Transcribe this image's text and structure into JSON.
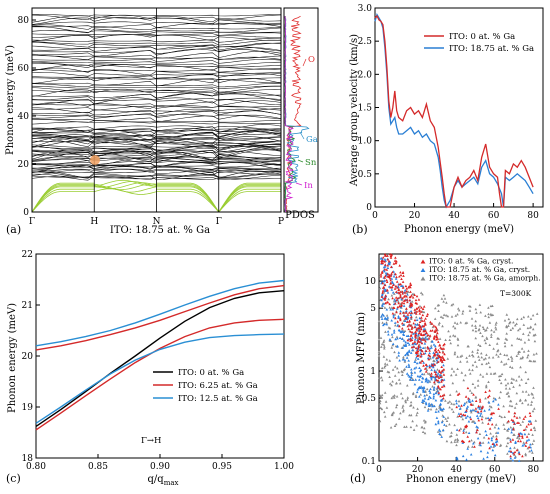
{
  "chart_data": [
    {
      "id": "a",
      "type": "line",
      "panel_label": "(a)",
      "caption": "ITO: 18.75 at. % Ga",
      "ylabel": "Phonon energy (meV)",
      "xticks": [
        "Γ",
        "H",
        "N",
        "Γ",
        "P"
      ],
      "xtick_pos": [
        0,
        1,
        2,
        3,
        4
      ],
      "yticks": [
        0,
        20,
        40,
        60,
        80
      ],
      "ylim": [
        0,
        85
      ],
      "bands": {
        "low_branches_color": "#9acd32",
        "high_branches_color": "#000000",
        "gap_bottom": 35,
        "gap_top": 37,
        "upper_band_range": [
          37,
          82
        ],
        "lower_band_range": [
          10,
          35
        ]
      },
      "pdos": {
        "label": "PDOS",
        "series": [
          {
            "name": "O",
            "color": "#e03030"
          },
          {
            "name": "Ga",
            "color": "#2a8fc8"
          },
          {
            "name": "Sn",
            "color": "#2e8b2e"
          },
          {
            "name": "In",
            "color": "#d020d0"
          }
        ]
      }
    },
    {
      "id": "b",
      "type": "line",
      "panel_label": "(b)",
      "xlabel": "Phonon energy (meV)",
      "ylabel": "Average group velocity (km/s)",
      "xlim": [
        0,
        85
      ],
      "ylim": [
        0,
        3.0
      ],
      "xticks": [
        0,
        20,
        40,
        60,
        80
      ],
      "yticks": [
        0,
        0.5,
        1.0,
        1.5,
        2.0,
        2.5,
        3.0
      ],
      "ytick_labels": [
        "0",
        "0.5",
        "1.0",
        "1.5",
        "2.0",
        "2.5",
        "3.0"
      ],
      "legend": "top-right",
      "series": [
        {
          "name": "ITO: 0 at. % Ga",
          "color": "#d42a2a",
          "x": [
            0,
            1,
            2,
            3,
            4,
            5,
            6,
            7,
            8,
            9,
            10,
            11,
            12,
            14,
            16,
            18,
            20,
            22,
            24,
            26,
            28,
            30,
            32,
            34,
            35,
            36,
            37,
            38,
            40,
            42,
            44,
            46,
            48,
            50,
            52,
            54,
            56,
            58,
            60,
            62,
            63,
            64,
            65,
            66,
            68,
            70,
            72,
            74,
            76,
            78,
            80
          ],
          "y": [
            2.85,
            2.88,
            2.82,
            2.8,
            2.75,
            2.5,
            2.1,
            1.6,
            1.35,
            1.5,
            1.75,
            1.45,
            1.35,
            1.3,
            1.45,
            1.5,
            1.4,
            1.45,
            1.35,
            1.55,
            1.3,
            1.2,
            0.9,
            0.45,
            0.2,
            0.0,
            0.0,
            0.0,
            0.3,
            0.45,
            0.3,
            0.4,
            0.45,
            0.55,
            0.4,
            0.75,
            0.95,
            0.6,
            0.5,
            0.45,
            0.2,
            0.0,
            0.0,
            0.55,
            0.5,
            0.65,
            0.6,
            0.7,
            0.6,
            0.45,
            0.3
          ]
        },
        {
          "name": "ITO: 18.75 at. % Ga",
          "color": "#2a7fd4",
          "x": [
            0,
            1,
            2,
            3,
            4,
            5,
            6,
            7,
            8,
            9,
            10,
            11,
            12,
            14,
            16,
            18,
            20,
            22,
            24,
            26,
            28,
            30,
            32,
            33,
            34,
            35,
            36,
            38,
            40,
            42,
            44,
            46,
            48,
            50,
            52,
            54,
            56,
            58,
            60,
            62,
            64,
            65,
            66,
            68,
            70,
            72,
            74,
            76,
            78,
            80
          ],
          "y": [
            2.8,
            2.9,
            2.85,
            2.8,
            2.7,
            2.4,
            2.0,
            1.5,
            1.25,
            1.3,
            1.35,
            1.2,
            1.1,
            1.1,
            1.15,
            1.2,
            1.1,
            1.15,
            1.05,
            1.1,
            1.0,
            0.95,
            0.75,
            0.55,
            0.3,
            0.1,
            0.0,
            0.1,
            0.3,
            0.4,
            0.3,
            0.35,
            0.4,
            0.45,
            0.35,
            0.6,
            0.7,
            0.5,
            0.45,
            0.35,
            0.2,
            0.0,
            0.45,
            0.4,
            0.45,
            0.5,
            0.45,
            0.4,
            0.3,
            0.2
          ]
        }
      ]
    },
    {
      "id": "c",
      "type": "line",
      "panel_label": "(c)",
      "xlabel": "q/q",
      "xlabel_sub": "max",
      "ylabel": "Phonon energy (meV)",
      "annotation": "Γ→H",
      "xlim": [
        0.8,
        1.0
      ],
      "ylim": [
        18,
        22
      ],
      "xticks": [
        0.8,
        0.85,
        0.9,
        0.95,
        1.0
      ],
      "xtick_labels": [
        "0.80",
        "0.85",
        "0.90",
        "0.95",
        "1.00"
      ],
      "yticks": [
        18,
        19,
        20,
        21,
        22
      ],
      "legend": "center-right",
      "series": [
        {
          "name": "ITO: 0 at. % Ga",
          "color": "#000000",
          "x": [
            0.8,
            0.82,
            0.84,
            0.86,
            0.88,
            0.9,
            0.92,
            0.94,
            0.96,
            0.98,
            1.0
          ],
          "y": [
            18.62,
            18.95,
            19.3,
            19.66,
            20.0,
            20.35,
            20.68,
            20.95,
            21.13,
            21.24,
            21.28
          ]
        },
        {
          "name": "ITO: 6.25 at. % Ga",
          "color": "#d42a2a",
          "x": [
            0.8,
            0.82,
            0.84,
            0.86,
            0.88,
            0.9,
            0.92,
            0.94,
            0.96,
            0.98,
            1.0
          ],
          "y": [
            18.55,
            18.88,
            19.22,
            19.55,
            19.87,
            20.15,
            20.38,
            20.55,
            20.65,
            20.7,
            20.72
          ]
        },
        {
          "name": "ITO: 6.25 at. % Ga",
          "color": "#d42a2a",
          "x": [
            0.8,
            0.82,
            0.84,
            0.86,
            0.88,
            0.9,
            0.92,
            0.94,
            0.96,
            0.98,
            1.0
          ],
          "y": [
            20.12,
            20.2,
            20.3,
            20.42,
            20.55,
            20.7,
            20.87,
            21.04,
            21.2,
            21.32,
            21.38
          ]
        },
        {
          "name": "ITO: 12.5 at. % Ga",
          "color": "#2a8fd4",
          "x": [
            0.8,
            0.82,
            0.84,
            0.86,
            0.88,
            0.9,
            0.92,
            0.94,
            0.96,
            0.98,
            1.0
          ],
          "y": [
            18.68,
            19.0,
            19.33,
            19.65,
            19.92,
            20.13,
            20.27,
            20.36,
            20.4,
            20.42,
            20.43
          ]
        },
        {
          "name": "ITO: 12.5 at. % Ga",
          "color": "#2a8fd4",
          "x": [
            0.8,
            0.82,
            0.84,
            0.86,
            0.88,
            0.9,
            0.92,
            0.94,
            0.96,
            0.98,
            1.0
          ],
          "y": [
            20.2,
            20.28,
            20.38,
            20.5,
            20.65,
            20.82,
            21.0,
            21.17,
            21.32,
            21.43,
            21.48
          ]
        }
      ],
      "legend_entries": [
        {
          "name": "ITO: 0 at. % Ga",
          "color": "#000000"
        },
        {
          "name": "ITO: 6.25 at. % Ga",
          "color": "#d42a2a"
        },
        {
          "name": "ITO: 12.5 at. % Ga",
          "color": "#2a8fd4"
        }
      ]
    },
    {
      "id": "d",
      "type": "scatter",
      "panel_label": "(d)",
      "xlabel": "Phonon energy (meV)",
      "ylabel": "Phonon MFP (nm)",
      "annotation": "T=300K",
      "yscale": "log",
      "xlim": [
        0,
        85
      ],
      "ylim": [
        0.1,
        20
      ],
      "xticks": [
        0,
        20,
        40,
        60,
        80
      ],
      "yticks": [
        0.1,
        0.5,
        1,
        5,
        10
      ],
      "ytick_labels": [
        "0.1",
        "0.5",
        "1",
        "5",
        "10"
      ],
      "legend": "top-right",
      "series": [
        {
          "name": "ITO: 0 at. % Ga, cryst.",
          "color": "#dd2222",
          "marker": "triangle"
        },
        {
          "name": "ITO: 18.75 at. % Ga, cryst.",
          "color": "#2a7fe0",
          "marker": "triangle"
        },
        {
          "name": "ITO: 18.75 at. % Ga, amorph.",
          "color": "#8a8a8a",
          "marker": "triangle"
        }
      ]
    }
  ]
}
